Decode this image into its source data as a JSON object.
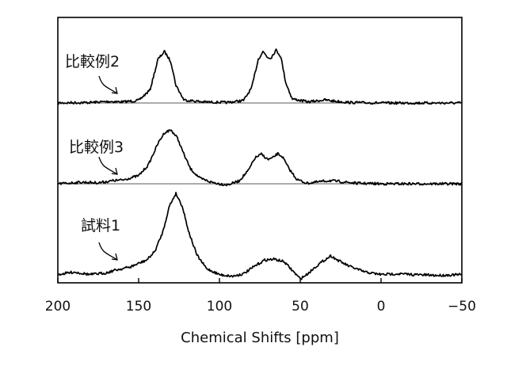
{
  "chart_data": {
    "type": "line",
    "xlabel": "Chemical Shifts [ppm]",
    "xlim": [
      200,
      -50
    ],
    "x_reversed": true,
    "xticks": [
      200,
      150,
      100,
      50,
      0,
      -50
    ],
    "xtick_labels": [
      "200",
      "150",
      "100",
      "50",
      "0",
      "−50"
    ],
    "ylabel": "",
    "yticks": "none",
    "grid": false,
    "legend": "none",
    "series": [
      {
        "name": "比較例2",
        "has_baseline": true,
        "pointer_ppm": 168,
        "points": [
          [
            200,
            0.0
          ],
          [
            180,
            0.01
          ],
          [
            168,
            0.03
          ],
          [
            160,
            0.02
          ],
          [
            150,
            0.05
          ],
          [
            143,
            0.25
          ],
          [
            138,
            0.85
          ],
          [
            134,
            1.0
          ],
          [
            130,
            0.8
          ],
          [
            127,
            0.35
          ],
          [
            122,
            0.06
          ],
          [
            110,
            0.02
          ],
          [
            95,
            0.01
          ],
          [
            85,
            0.05
          ],
          [
            80,
            0.3
          ],
          [
            76,
            0.85
          ],
          [
            73,
            1.0
          ],
          [
            70,
            0.88
          ],
          [
            68,
            0.88
          ],
          [
            65,
            1.03
          ],
          [
            62,
            0.9
          ],
          [
            59,
            0.4
          ],
          [
            55,
            0.08
          ],
          [
            45,
            0.02
          ],
          [
            35,
            0.06
          ],
          [
            30,
            0.04
          ],
          [
            20,
            0.01
          ],
          [
            0,
            0.0
          ],
          [
            -25,
            0.0
          ],
          [
            -50,
            0.0
          ]
        ]
      },
      {
        "name": "比較例3",
        "has_baseline": true,
        "pointer_ppm": 162,
        "points": [
          [
            200,
            0.0
          ],
          [
            185,
            0.03
          ],
          [
            175,
            0.02
          ],
          [
            165,
            0.06
          ],
          [
            160,
            0.07
          ],
          [
            150,
            0.15
          ],
          [
            144,
            0.35
          ],
          [
            138,
            0.75
          ],
          [
            134,
            0.95
          ],
          [
            130,
            1.0
          ],
          [
            126,
            0.85
          ],
          [
            122,
            0.55
          ],
          [
            118,
            0.28
          ],
          [
            112,
            0.1
          ],
          [
            105,
            0.03
          ],
          [
            100,
            0.0
          ],
          [
            95,
            -0.02
          ],
          [
            88,
            0.05
          ],
          [
            82,
            0.25
          ],
          [
            78,
            0.48
          ],
          [
            74,
            0.55
          ],
          [
            70,
            0.45
          ],
          [
            67,
            0.48
          ],
          [
            64,
            0.56
          ],
          [
            61,
            0.5
          ],
          [
            57,
            0.28
          ],
          [
            52,
            0.08
          ],
          [
            46,
            0.01
          ],
          [
            40,
            0.03
          ],
          [
            32,
            0.06
          ],
          [
            25,
            0.04
          ],
          [
            15,
            0.01
          ],
          [
            0,
            0.0
          ],
          [
            -25,
            0.0
          ],
          [
            -50,
            0.0
          ]
        ]
      },
      {
        "name": "試料1",
        "has_baseline": false,
        "pointer_ppm": 162,
        "points": [
          [
            200,
            0.05
          ],
          [
            190,
            0.08
          ],
          [
            180,
            0.05
          ],
          [
            170,
            0.07
          ],
          [
            165,
            0.1
          ],
          [
            160,
            0.12
          ],
          [
            155,
            0.14
          ],
          [
            150,
            0.18
          ],
          [
            145,
            0.22
          ],
          [
            140,
            0.32
          ],
          [
            135,
            0.55
          ],
          [
            131,
            0.85
          ],
          [
            127,
            1.0
          ],
          [
            123,
            0.85
          ],
          [
            119,
            0.55
          ],
          [
            114,
            0.28
          ],
          [
            108,
            0.12
          ],
          [
            100,
            0.05
          ],
          [
            92,
            0.03
          ],
          [
            85,
            0.06
          ],
          [
            78,
            0.15
          ],
          [
            72,
            0.22
          ],
          [
            66,
            0.23
          ],
          [
            60,
            0.2
          ],
          [
            55,
            0.1
          ],
          [
            50,
            0.0
          ],
          [
            46,
            0.05
          ],
          [
            40,
            0.15
          ],
          [
            35,
            0.22
          ],
          [
            31,
            0.27
          ],
          [
            27,
            0.22
          ],
          [
            20,
            0.15
          ],
          [
            10,
            0.08
          ],
          [
            0,
            0.05
          ],
          [
            -10,
            0.06
          ],
          [
            -20,
            0.05
          ],
          [
            -35,
            0.04
          ],
          [
            -50,
            0.05
          ]
        ]
      }
    ]
  }
}
